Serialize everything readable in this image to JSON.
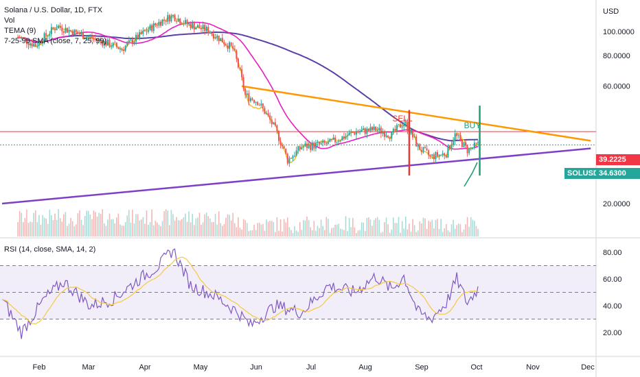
{
  "legend": {
    "symbol_line": "Solana / U.S. Dollar, 1D, FTX",
    "vol": "Vol",
    "tema": "TEMA (9)",
    "sma": "7-25-99 SMA (close, 7, 25, 99)"
  },
  "rsi_legend": "RSI (14, close, SMA, 14, 2)",
  "tags": {
    "red_price": "39.2225",
    "symbol": "SOLUSD",
    "last_price": "34.6300"
  },
  "annotations": {
    "sell": "SELL",
    "buy": "BUY"
  },
  "colors": {
    "up": "#26a69a",
    "down": "#ef5350",
    "tema": "#f2c12e",
    "sma25": "#e81cbf",
    "sma99": "#5b3fa6",
    "trend_orange": "#ff9800",
    "trend_purple": "#7e3fc6",
    "rsi": "#7e57c2",
    "rsi_ma": "#f5c842",
    "sell": "#e53935",
    "buy": "#1e9e76",
    "hline": "#f23645",
    "last": "#26a69a"
  },
  "chart_data": [
    {
      "type": "candlestick",
      "title": "Solana / U.S. Dollar, 1D, FTX",
      "y_axis": {
        "unit": "USD",
        "ticks": [
          "100.0000",
          "80.0000",
          "60.0000",
          "20.0000"
        ]
      },
      "x_axis": {
        "ticks": [
          "Feb",
          "Mar",
          "Apr",
          "May",
          "Jun",
          "Jul",
          "Aug",
          "Sep",
          "Oct",
          "Nov",
          "Dec"
        ]
      },
      "ylim": [
        10,
        115
      ],
      "close_path": [
        [
          "2021-01-10",
          95
        ],
        [
          "2021-01-20",
          88
        ],
        [
          "2021-02-01",
          105
        ],
        [
          "2021-02-10",
          100
        ],
        [
          "2021-02-25",
          92
        ],
        [
          "2021-03-10",
          85
        ],
        [
          "2021-03-20",
          96
        ],
        [
          "2021-04-01",
          110
        ],
        [
          "2021-04-08",
          116
        ],
        [
          "2021-04-15",
          108
        ],
        [
          "2021-04-28",
          101
        ],
        [
          "2021-05-05",
          93
        ],
        [
          "2021-05-12",
          85
        ],
        [
          "2021-05-19",
          55
        ],
        [
          "2021-05-26",
          52
        ],
        [
          "2021-06-05",
          40
        ],
        [
          "2021-06-12",
          30
        ],
        [
          "2021-06-20",
          34
        ],
        [
          "2021-07-05",
          35
        ],
        [
          "2021-07-20",
          39
        ],
        [
          "2021-08-01",
          40
        ],
        [
          "2021-08-10",
          38
        ],
        [
          "2021-08-17",
          43
        ],
        [
          "2021-08-25",
          34
        ],
        [
          "2021-09-01",
          31
        ],
        [
          "2021-09-10",
          32
        ],
        [
          "2021-09-15",
          38
        ],
        [
          "2021-09-22",
          33
        ],
        [
          "2021-09-28",
          34.63
        ]
      ],
      "hlines": [
        {
          "value": 39.2225
        },
        {
          "value": 34.63,
          "style": "dotted"
        }
      ],
      "trendlines": [
        {
          "color": "orange",
          "from": [
            "2021-05-17",
            60
          ],
          "to": [
            "2021-12-01",
            36
          ]
        },
        {
          "color": "purple",
          "from": [
            "2021-01-01",
            20
          ],
          "to": [
            "2021-12-01",
            33.5
          ]
        }
      ],
      "markers": [
        {
          "label": "SELL",
          "x": "2021-08-20",
          "y_range": [
            26,
            48
          ]
        },
        {
          "label": "BUY",
          "x": "2021-09-29",
          "y_range": [
            26,
            50
          ]
        }
      ]
    },
    {
      "type": "line",
      "title": "RSI (14, close, SMA, 14, 2)",
      "y_axis": {
        "ticks": [
          "80.00",
          "60.00",
          "40.00",
          "20.00"
        ]
      },
      "ylim": [
        10,
        90
      ],
      "bands": [
        70,
        50,
        30
      ],
      "rsi_path": [
        [
          "2021-01-01",
          45
        ],
        [
          "2021-01-12",
          20
        ],
        [
          "2021-01-25",
          45
        ],
        [
          "2021-02-05",
          58
        ],
        [
          "2021-02-20",
          40
        ],
        [
          "2021-03-05",
          45
        ],
        [
          "2021-03-20",
          60
        ],
        [
          "2021-03-31",
          70
        ],
        [
          "2021-04-08",
          82
        ],
        [
          "2021-04-18",
          55
        ],
        [
          "2021-05-01",
          48
        ],
        [
          "2021-05-15",
          35
        ],
        [
          "2021-05-22",
          25
        ],
        [
          "2021-06-05",
          40
        ],
        [
          "2021-06-20",
          35
        ],
        [
          "2021-07-05",
          55
        ],
        [
          "2021-07-20",
          50
        ],
        [
          "2021-08-01",
          62
        ],
        [
          "2021-08-10",
          52
        ],
        [
          "2021-08-17",
          62
        ],
        [
          "2021-08-25",
          35
        ],
        [
          "2021-09-01",
          30
        ],
        [
          "2021-09-10",
          42
        ],
        [
          "2021-09-16",
          60
        ],
        [
          "2021-09-22",
          42
        ],
        [
          "2021-09-28",
          53
        ]
      ]
    }
  ]
}
